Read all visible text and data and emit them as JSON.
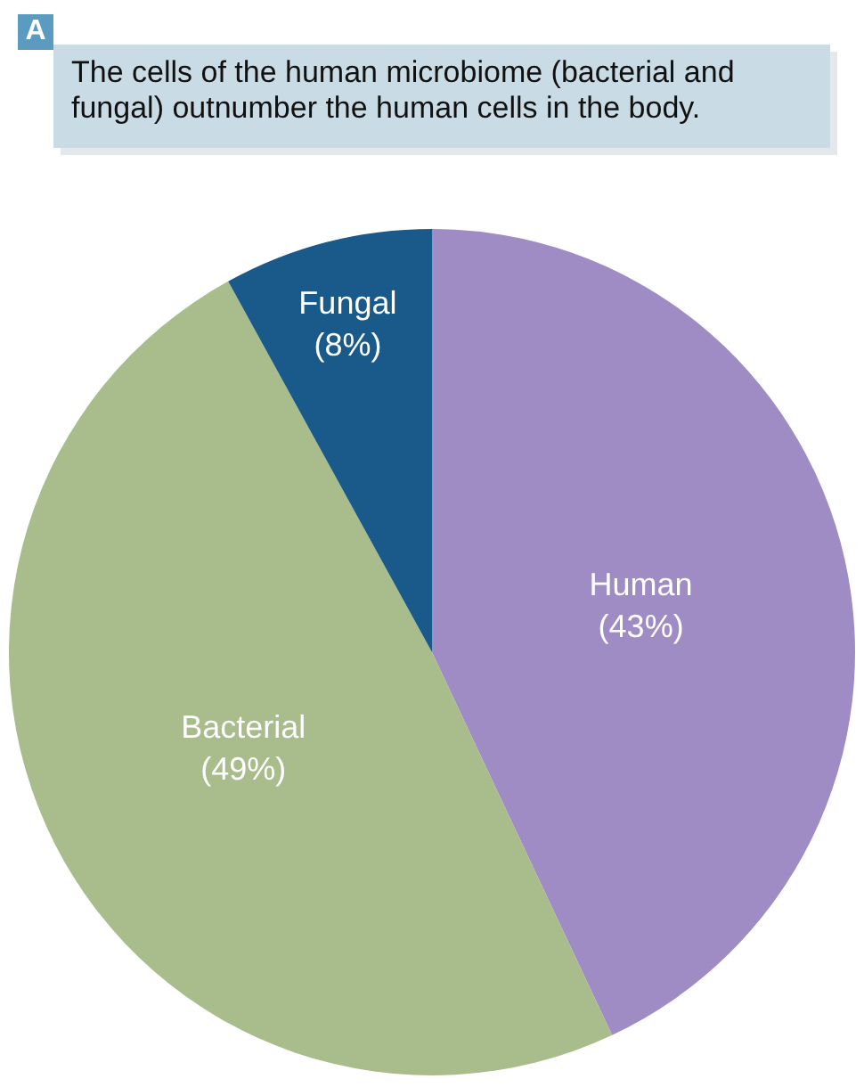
{
  "chart_data": {
    "type": "pie",
    "title": "The cells of the human microbiome (bacterial and fungal) outnumber the human cells in the body.",
    "annotations": [
      "A"
    ],
    "categories": [
      "Human",
      "Bacterial",
      "Fungal"
    ],
    "values": [
      43,
      49,
      8
    ],
    "value_labels": [
      "(43%)",
      "(49%)",
      "(8%)"
    ],
    "colors": [
      "#a08cc4",
      "#a8bc8c",
      "#1a5a8a"
    ],
    "legend": false
  }
}
